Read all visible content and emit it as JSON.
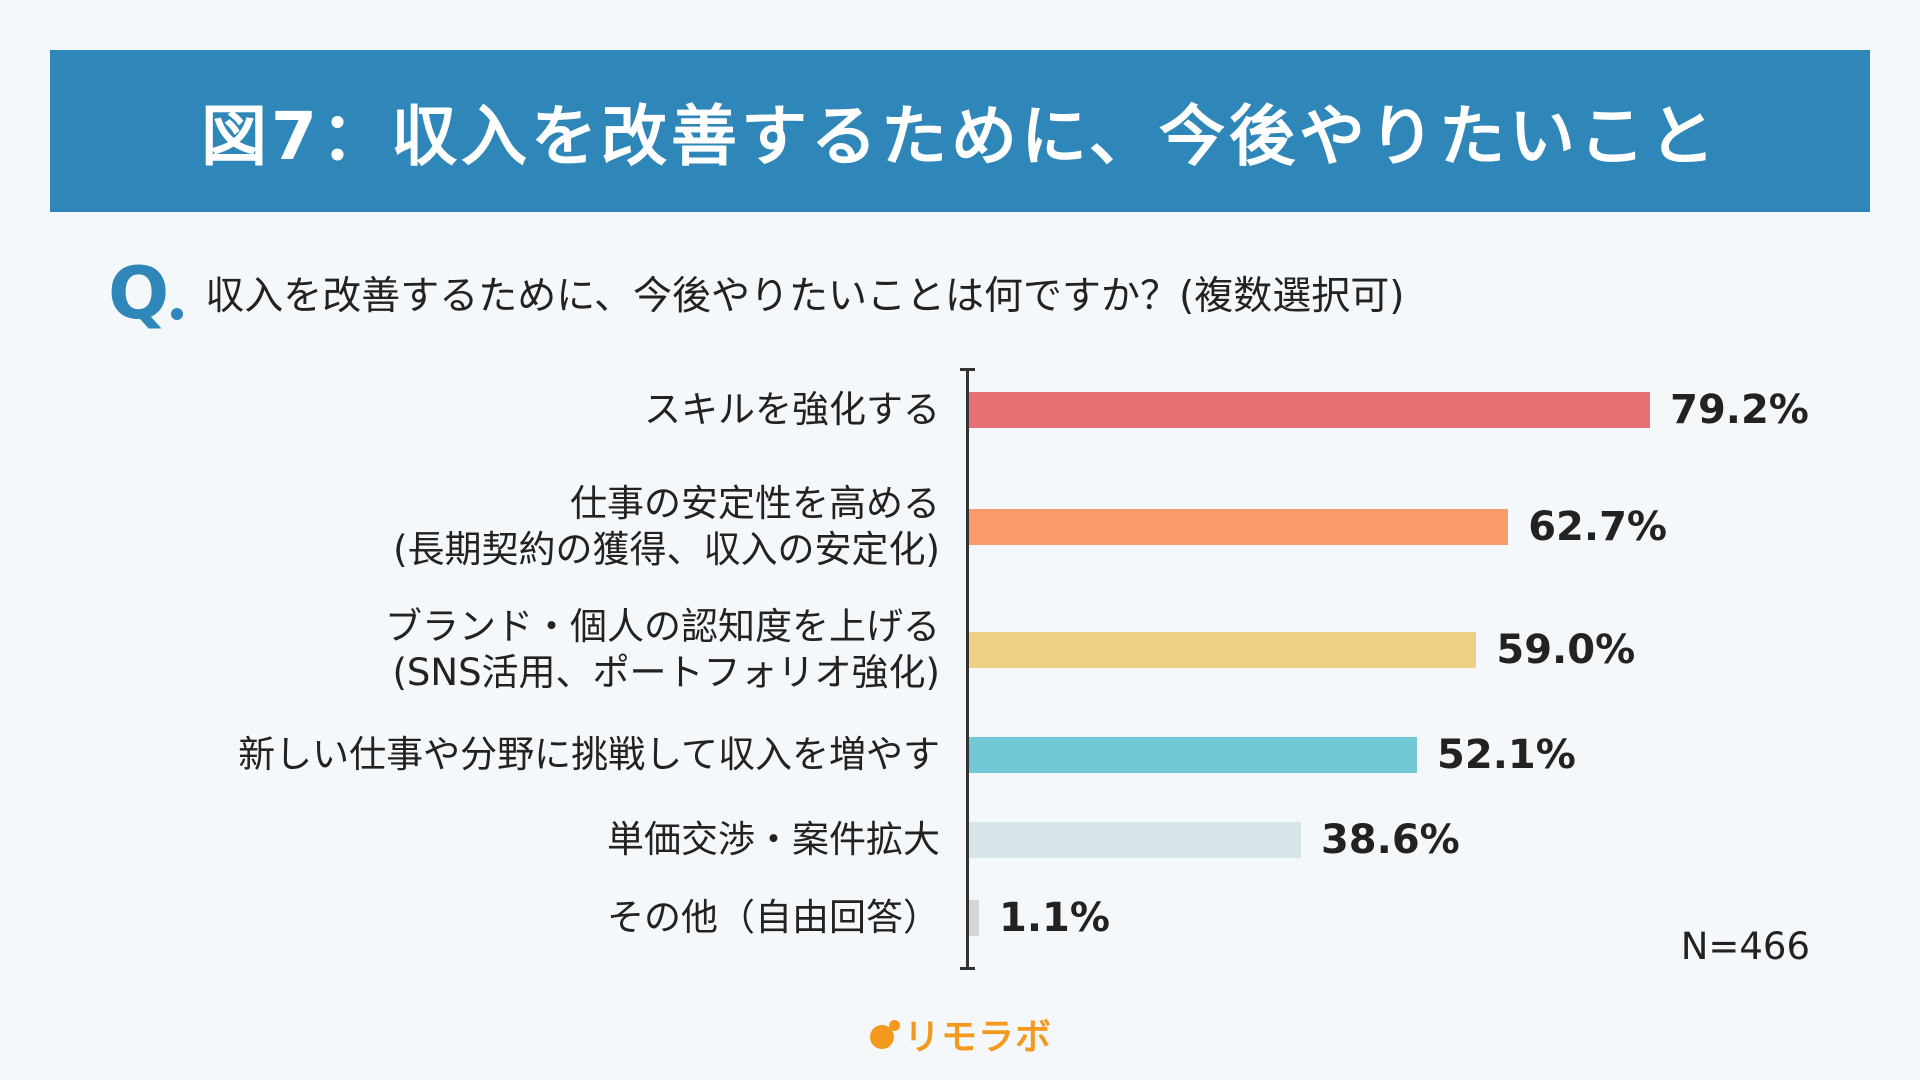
{
  "header": {
    "title": "図7：収入を改善するために、今後やりたいこと"
  },
  "question": {
    "mark": "Q",
    "text": "収入を改善するために、今後やりたいことは何ですか？(複数選択可)"
  },
  "note": "N=466",
  "logo": {
    "text": "リモラボ"
  },
  "colors": {
    "banner": "#2e87b8",
    "bars": [
      "#e86f73",
      "#fb9b6b",
      "#f0cf86",
      "#72c8d7",
      "#d5e5e8",
      "#d6d6d6"
    ],
    "logo": "#f39a1e"
  },
  "chart_data": {
    "type": "bar",
    "orientation": "horizontal",
    "title": "図7：収入を改善するために、今後やりたいこと",
    "categories": [
      [
        "スキルを強化する"
      ],
      [
        "仕事の安定性を高める",
        "(長期契約の獲得、収入の安定化)"
      ],
      [
        "ブランド・個人の認知度を上げる",
        "(SNS活用、ポートフォリオ強化)"
      ],
      [
        "新しい仕事や分野に挑戦して収入を増やす"
      ],
      [
        "単価交渉・案件拡大"
      ],
      [
        "その他（自由回答）"
      ]
    ],
    "values": [
      79.2,
      62.7,
      59.0,
      52.1,
      38.6,
      1.1
    ],
    "value_labels": [
      "79.2%",
      "62.7%",
      "59.0%",
      "52.1%",
      "38.6%",
      "1.1%"
    ],
    "unit": "%",
    "xlim": [
      0,
      100
    ],
    "grid": false,
    "legend": "none"
  }
}
